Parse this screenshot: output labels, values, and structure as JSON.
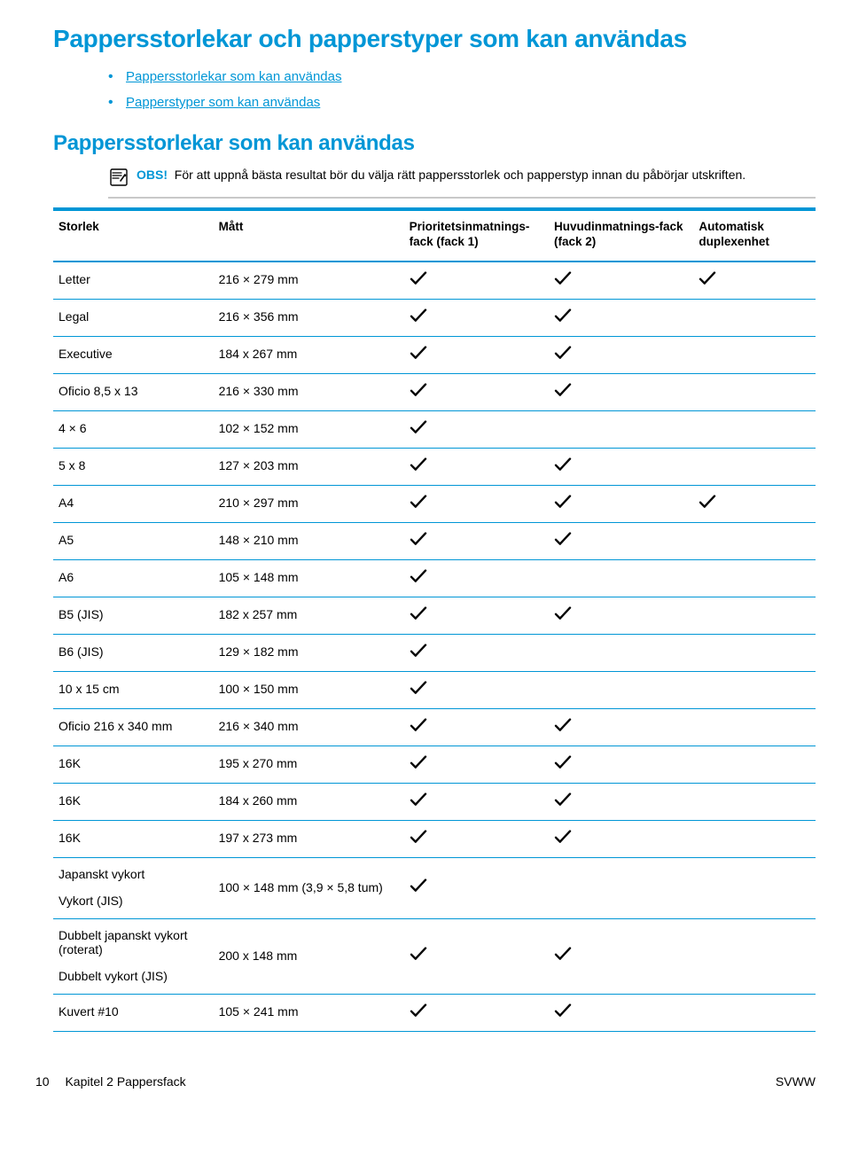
{
  "colors": {
    "accent": "#0096d6",
    "rule_gray": "#c8c8c8",
    "text": "#000000",
    "bg": "#ffffff"
  },
  "heading1": "Pappersstorlekar och papperstyper som kan användas",
  "links": [
    "Pappersstorlekar som kan användas",
    "Papperstyper som kan användas"
  ],
  "heading2": "Pappersstorlekar som kan användas",
  "note": {
    "label": "OBS!",
    "text": "För att uppnå bästa resultat bör du välja rätt pappersstorlek och papperstyp innan du påbörjar utskriften."
  },
  "table": {
    "headers": {
      "size": "Storlek",
      "dim": "Mått",
      "priority": "Prioritetsinmatnings-fack (fack 1)",
      "main": "Huvudinmatnings-fack (fack 2)",
      "duplex": "Automatisk duplexenhet"
    },
    "rows": [
      {
        "size": "Letter",
        "dim": "216 × 279 mm",
        "p": true,
        "m": true,
        "d": true
      },
      {
        "size": "Legal",
        "dim": "216 × 356 mm",
        "p": true,
        "m": true,
        "d": false
      },
      {
        "size": "Executive",
        "dim": "184 x 267 mm",
        "p": true,
        "m": true,
        "d": false
      },
      {
        "size": "Oficio 8,5 x 13",
        "dim": "216 × 330 mm",
        "p": true,
        "m": true,
        "d": false
      },
      {
        "size": "4 × 6",
        "dim": "102 × 152 mm",
        "p": true,
        "m": false,
        "d": false
      },
      {
        "size": "5 x 8",
        "dim": "127 × 203 mm",
        "p": true,
        "m": true,
        "d": false
      },
      {
        "size": "A4",
        "dim": "210 × 297 mm",
        "p": true,
        "m": true,
        "d": true
      },
      {
        "size": "A5",
        "dim": "148 × 210 mm",
        "p": true,
        "m": true,
        "d": false
      },
      {
        "size": "A6",
        "dim": "105 × 148 mm",
        "p": true,
        "m": false,
        "d": false
      },
      {
        "size": "B5 (JIS)",
        "dim": "182 x 257 mm",
        "p": true,
        "m": true,
        "d": false
      },
      {
        "size": "B6 (JIS)",
        "dim": "129 × 182 mm",
        "p": true,
        "m": false,
        "d": false
      },
      {
        "size": "10 x 15 cm",
        "dim": "100 × 150 mm",
        "p": true,
        "m": false,
        "d": false
      },
      {
        "size": "Oficio 216 x 340 mm",
        "dim": "216 × 340 mm",
        "p": true,
        "m": true,
        "d": false
      },
      {
        "size": "16K",
        "dim": "195 x 270 mm",
        "p": true,
        "m": true,
        "d": false
      },
      {
        "size": "16K",
        "dim": "184 x 260 mm",
        "p": true,
        "m": true,
        "d": false
      },
      {
        "size": "16K",
        "dim": "197 x 273 mm",
        "p": true,
        "m": true,
        "d": false
      },
      {
        "size": "Japanskt vykort",
        "sub": "Vykort (JIS)",
        "dim": "100 × 148 mm (3,9 × 5,8 tum)",
        "p": true,
        "m": false,
        "d": false
      },
      {
        "size": "Dubbelt japanskt vykort (roterat)",
        "sub": "Dubbelt vykort (JIS)",
        "dim": "200 x 148 mm",
        "p": true,
        "m": true,
        "d": false
      },
      {
        "size": "Kuvert #10",
        "dim": "105 × 241 mm",
        "p": true,
        "m": true,
        "d": false
      }
    ]
  },
  "footer": {
    "pagenum": "10",
    "chapter": "Kapitel 2   Pappersfack",
    "right": "SVWW"
  }
}
